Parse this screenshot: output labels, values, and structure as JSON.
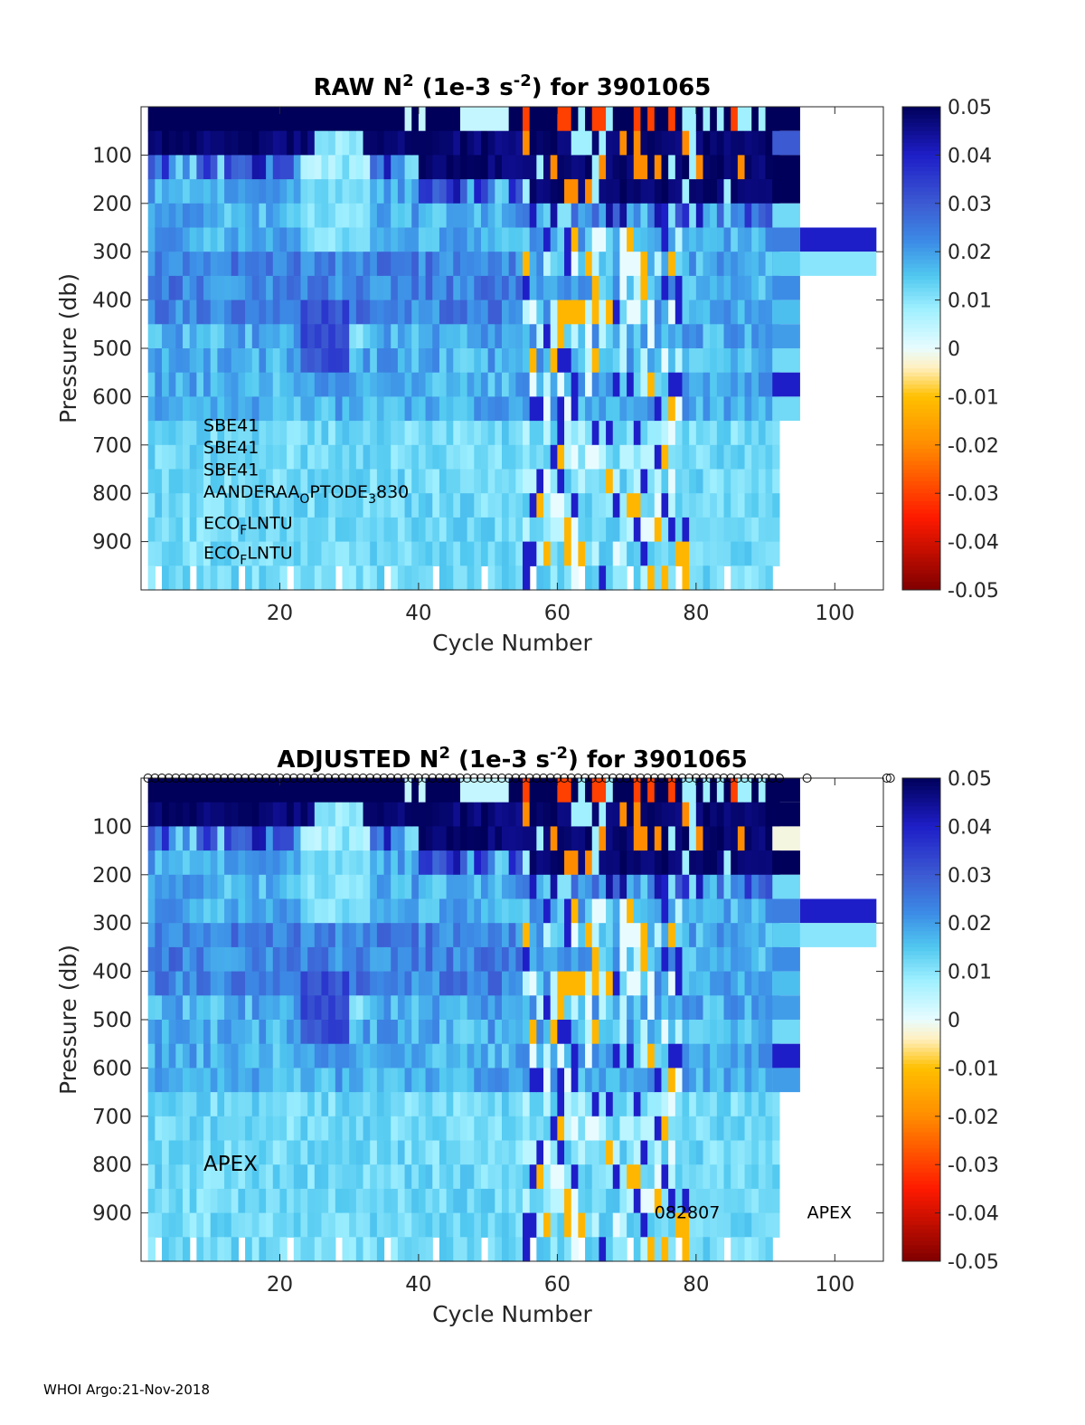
{
  "footer": "WHOI Argo:21-Nov-2018",
  "colormap": {
    "stops": [
      {
        "v": -0.05,
        "color": "#7f0000"
      },
      {
        "v": -0.035,
        "color": "#ff1a00"
      },
      {
        "v": -0.02,
        "color": "#ff8c00"
      },
      {
        "v": -0.01,
        "color": "#ffc000"
      },
      {
        "v": -0.004,
        "color": "#fff0c0"
      },
      {
        "v": 0.0,
        "color": "#e8fcff"
      },
      {
        "v": 0.008,
        "color": "#a0f0ff"
      },
      {
        "v": 0.015,
        "color": "#50c8f0"
      },
      {
        "v": 0.022,
        "color": "#3c8ce6"
      },
      {
        "v": 0.03,
        "color": "#3c5ad2"
      },
      {
        "v": 0.04,
        "color": "#1e1ec8"
      },
      {
        "v": 0.05,
        "color": "#00005a"
      }
    ],
    "ticks": [
      0.05,
      0.04,
      0.03,
      0.02,
      0.01,
      0,
      -0.01,
      -0.02,
      -0.03,
      -0.04,
      -0.05
    ],
    "tick_labels": [
      "0.05",
      "0.04",
      "0.03",
      "0.02",
      "0.01",
      "0",
      "-0.01",
      "-0.02",
      "-0.03",
      "-0.04",
      "-0.05"
    ]
  },
  "chart_data": [
    {
      "type": "heatmap",
      "title_prefix": "RAW N",
      "title_sup1": "2",
      "title_mid": " (1e-3 s",
      "title_sup2": "-2",
      "title_suffix": ") for 3901065",
      "xlabel": "Cycle Number",
      "ylabel": "Pressure (db)",
      "xlim": [
        0,
        107
      ],
      "ylim": [
        0,
        1000
      ],
      "xticks": [
        20,
        40,
        60,
        80,
        100
      ],
      "xtick_labels": [
        "20",
        "40",
        "60",
        "80",
        "100"
      ],
      "yticks": [
        100,
        200,
        300,
        400,
        500,
        600,
        700,
        800,
        900
      ],
      "ytick_labels": [
        "100",
        "200",
        "300",
        "400",
        "500",
        "600",
        "700",
        "800",
        "900"
      ],
      "clim": [
        -0.05,
        0.05
      ],
      "cycles": 91,
      "levels": 20,
      "extra_cells": [
        {
          "x0": 91,
          "x1": 95,
          "p0": 0,
          "p1": 50,
          "v": 0.05
        },
        {
          "x0": 91,
          "x1": 95,
          "p0": 50,
          "p1": 100,
          "v": 0.03
        },
        {
          "x0": 91,
          "x1": 95,
          "p0": 100,
          "p1": 200,
          "v": 0.05
        },
        {
          "x0": 91,
          "x1": 95,
          "p0": 200,
          "p1": 250,
          "v": 0.012
        },
        {
          "x0": 91,
          "x1": 95,
          "p0": 250,
          "p1": 300,
          "v": 0.024
        },
        {
          "x0": 91,
          "x1": 95,
          "p0": 300,
          "p1": 350,
          "v": 0.014
        },
        {
          "x0": 91,
          "x1": 95,
          "p0": 350,
          "p1": 400,
          "v": 0.022
        },
        {
          "x0": 91,
          "x1": 95,
          "p0": 400,
          "p1": 450,
          "v": 0.016
        },
        {
          "x0": 91,
          "x1": 95,
          "p0": 450,
          "p1": 500,
          "v": 0.02
        },
        {
          "x0": 91,
          "x1": 95,
          "p0": 500,
          "p1": 550,
          "v": 0.012
        },
        {
          "x0": 91,
          "x1": 95,
          "p0": 550,
          "p1": 600,
          "v": 0.04
        },
        {
          "x0": 91,
          "x1": 95,
          "p0": 600,
          "p1": 650,
          "v": 0.012
        },
        {
          "x0": 95,
          "x1": 106,
          "p0": 250,
          "p1": 300,
          "v": 0.04
        },
        {
          "x0": 95,
          "x1": 106,
          "p0": 300,
          "p1": 350,
          "v": 0.01
        }
      ],
      "annotations": [
        {
          "text": "SBE41",
          "x": 9,
          "p": 660,
          "size": 19
        },
        {
          "text": "SBE41",
          "x": 9,
          "p": 706,
          "size": 19
        },
        {
          "text": "SBE41",
          "x": 9,
          "p": 752,
          "size": 19
        },
        {
          "text": "AANDERAA",
          "sub": "O",
          "text2": "PTODE",
          "sub2": "3",
          "text3": "830",
          "x": 9,
          "p": 798,
          "size": 19
        },
        {
          "text": "ECO",
          "sub": "F",
          "text2": "LNTU",
          "x": 9,
          "p": 862,
          "size": 19
        },
        {
          "text": "ECO",
          "sub": "F",
          "text2": "LNTU",
          "x": 9,
          "p": 924,
          "size": 19
        }
      ]
    },
    {
      "type": "heatmap",
      "title_prefix": "ADJUSTED N",
      "title_sup1": "2",
      "title_mid": " (1e-3 s",
      "title_sup2": "-2",
      "title_suffix": ") for 3901065",
      "xlabel": "Cycle Number",
      "ylabel": "Pressure (db)",
      "xlim": [
        0,
        107
      ],
      "ylim": [
        0,
        1000
      ],
      "xticks": [
        20,
        40,
        60,
        80,
        100
      ],
      "xtick_labels": [
        "20",
        "40",
        "60",
        "80",
        "100"
      ],
      "yticks": [
        100,
        200,
        300,
        400,
        500,
        600,
        700,
        800,
        900
      ],
      "ytick_labels": [
        "100",
        "200",
        "300",
        "400",
        "500",
        "600",
        "700",
        "800",
        "900"
      ],
      "clim": [
        -0.05,
        0.05
      ],
      "cycles": 91,
      "levels": 20,
      "qc_markers": {
        "marker": "o",
        "cycles_from": 1,
        "cycles_to": 92,
        "extra": [
          96,
          107.5,
          108
        ]
      },
      "extra_cells": [
        {
          "x0": 91,
          "x1": 95,
          "p0": 0,
          "p1": 50,
          "v": 0.05
        },
        {
          "x0": 91,
          "x1": 95,
          "p0": 50,
          "p1": 100,
          "v": 0.05
        },
        {
          "x0": 91,
          "x1": 95,
          "p0": 100,
          "p1": 150,
          "v": -0.002
        },
        {
          "x0": 91,
          "x1": 95,
          "p0": 150,
          "p1": 200,
          "v": 0.05
        },
        {
          "x0": 91,
          "x1": 95,
          "p0": 200,
          "p1": 250,
          "v": 0.012
        },
        {
          "x0": 91,
          "x1": 95,
          "p0": 250,
          "p1": 300,
          "v": 0.024
        },
        {
          "x0": 91,
          "x1": 95,
          "p0": 300,
          "p1": 350,
          "v": 0.014
        },
        {
          "x0": 91,
          "x1": 95,
          "p0": 350,
          "p1": 400,
          "v": 0.022
        },
        {
          "x0": 91,
          "x1": 95,
          "p0": 400,
          "p1": 450,
          "v": 0.016
        },
        {
          "x0": 91,
          "x1": 95,
          "p0": 450,
          "p1": 500,
          "v": 0.02
        },
        {
          "x0": 91,
          "x1": 95,
          "p0": 500,
          "p1": 550,
          "v": 0.012
        },
        {
          "x0": 91,
          "x1": 95,
          "p0": 550,
          "p1": 600,
          "v": 0.04
        },
        {
          "x0": 91,
          "x1": 95,
          "p0": 600,
          "p1": 650,
          "v": 0.02
        },
        {
          "x0": 95,
          "x1": 106,
          "p0": 250,
          "p1": 300,
          "v": 0.04
        },
        {
          "x0": 95,
          "x1": 106,
          "p0": 300,
          "p1": 350,
          "v": 0.01
        }
      ],
      "annotations": [
        {
          "text": "APEX",
          "x": 9,
          "p": 800,
          "size": 23
        },
        {
          "text": "082807",
          "x": 74,
          "p": 900,
          "size": 19
        },
        {
          "text": "APEX",
          "x": 96,
          "p": 900,
          "size": 19
        }
      ]
    }
  ]
}
